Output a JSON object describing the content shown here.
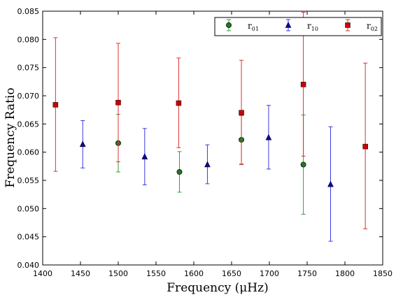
{
  "chart_data": {
    "type": "scatter",
    "xlabel": "Frequency  (μHz)",
    "ylabel": "Frequency Ratio",
    "xlim": [
      1400,
      1850
    ],
    "ylim": [
      0.04,
      0.085
    ],
    "xticks": [
      "1400",
      "1450",
      "1500",
      "1550",
      "1600",
      "1650",
      "1700",
      "1750",
      "1800",
      "1850"
    ],
    "yticks": [
      "0.040",
      "0.045",
      "0.050",
      "0.055",
      "0.060",
      "0.065",
      "0.070",
      "0.075",
      "0.080",
      "0.085"
    ],
    "grid": false,
    "legend_position": "top-right",
    "series": [
      {
        "name": "r01",
        "label_main": "r",
        "label_sub": "01",
        "color": "#3a9a3a",
        "fill": "#1e7a1e",
        "marker": "circle",
        "points": [
          {
            "x": 1500,
            "y": 0.0616,
            "lo": 0.0565,
            "hi": 0.0667
          },
          {
            "x": 1581,
            "y": 0.0565,
            "lo": 0.0529,
            "hi": 0.0601
          },
          {
            "x": 1663,
            "y": 0.0622,
            "lo": 0.0579,
            "hi": 0.0665
          },
          {
            "x": 1745,
            "y": 0.0578,
            "lo": 0.049,
            "hi": 0.0666
          }
        ]
      },
      {
        "name": "r10",
        "label_main": "r",
        "label_sub": "10",
        "color": "#3a3ae0",
        "fill": "#0a0a9a",
        "marker": "triangle",
        "points": [
          {
            "x": 1453,
            "y": 0.0614,
            "lo": 0.0572,
            "hi": 0.0656
          },
          {
            "x": 1535,
            "y": 0.0592,
            "lo": 0.0542,
            "hi": 0.0642
          },
          {
            "x": 1618,
            "y": 0.0578,
            "lo": 0.0544,
            "hi": 0.0613
          },
          {
            "x": 1699,
            "y": 0.0626,
            "lo": 0.057,
            "hi": 0.0683
          },
          {
            "x": 1781,
            "y": 0.0543,
            "lo": 0.0442,
            "hi": 0.0645
          }
        ]
      },
      {
        "name": "r02",
        "label_main": "r",
        "label_sub": "02",
        "color": "#e03030",
        "fill": "#cc0000",
        "marker": "square",
        "points": [
          {
            "x": 1417,
            "y": 0.0684,
            "lo": 0.0566,
            "hi": 0.0803
          },
          {
            "x": 1500,
            "y": 0.0688,
            "lo": 0.0583,
            "hi": 0.0793
          },
          {
            "x": 1580,
            "y": 0.0687,
            "lo": 0.0608,
            "hi": 0.0767
          },
          {
            "x": 1663,
            "y": 0.067,
            "lo": 0.0578,
            "hi": 0.0763
          },
          {
            "x": 1745,
            "y": 0.072,
            "lo": 0.0593,
            "hi": 0.0848
          },
          {
            "x": 1827,
            "y": 0.061,
            "lo": 0.0464,
            "hi": 0.0758
          }
        ]
      }
    ]
  }
}
